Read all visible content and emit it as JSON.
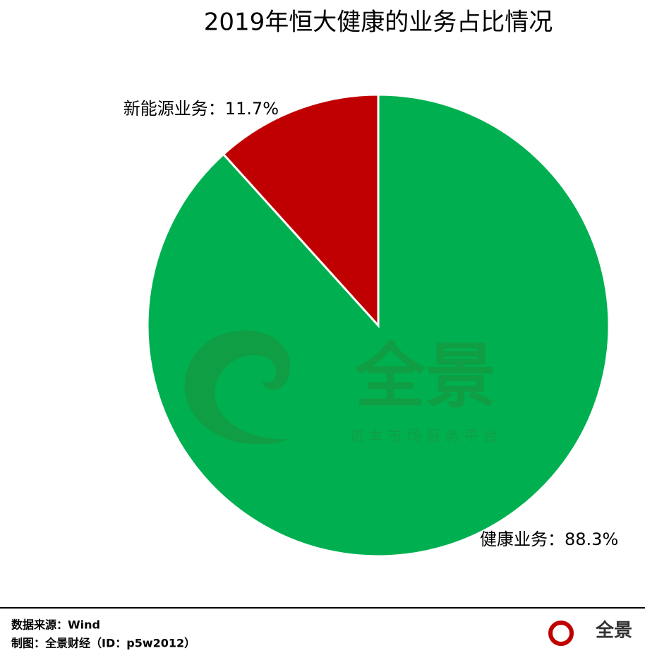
{
  "chart_data": {
    "type": "pie",
    "title": "2019年恒大健康的业务占比情况",
    "categories": [
      "健康业务",
      "新能源业务"
    ],
    "values": [
      88.3,
      11.7
    ],
    "value_labels": [
      "88.3%",
      "11.7%"
    ],
    "label_separator": "：",
    "colors": [
      "#00b050",
      "#c00000"
    ]
  },
  "watermark": {
    "name": "全景",
    "slogan": "资本市场服务平台"
  },
  "footer": {
    "source": "数据来源：Wind",
    "credit": "制图：全景财经（ID：p5w2012）",
    "logo": "全景"
  }
}
